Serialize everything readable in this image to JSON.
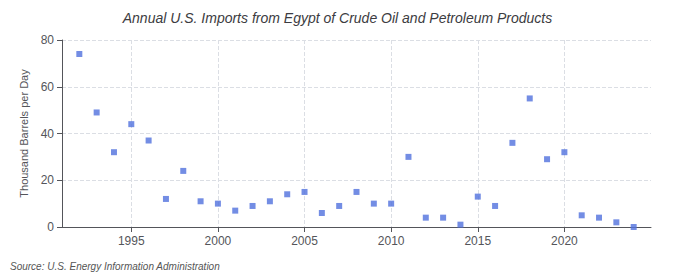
{
  "chart_data": {
    "type": "scatter",
    "title": "Annual U.S. Imports from Egypt of Crude Oil and Petroleum Products",
    "ylabel": "Thousand Barrels per Day",
    "annotations": [
      "Source: U.S. Energy Information Administration"
    ],
    "x": [
      1992,
      1993,
      1994,
      1995,
      1996,
      1997,
      1998,
      1999,
      2000,
      2001,
      2002,
      2003,
      2004,
      2005,
      2006,
      2007,
      2008,
      2009,
      2010,
      2011,
      2012,
      2013,
      2014,
      2015,
      2016,
      2017,
      2018,
      2019,
      2020,
      2021,
      2022,
      2023,
      2024
    ],
    "values": [
      74,
      49,
      32,
      44,
      37,
      12,
      24,
      11,
      10,
      7,
      9,
      11,
      14,
      15,
      6,
      9,
      15,
      10,
      10,
      30,
      4,
      4,
      1,
      13,
      9,
      36,
      55,
      29,
      32,
      5,
      4,
      2,
      0
    ],
    "xlim": [
      1991,
      2025
    ],
    "xticks": [
      1995,
      2000,
      2005,
      2010,
      2015,
      2020
    ],
    "ylim": [
      0,
      80
    ],
    "yticks": [
      0,
      20,
      40,
      60,
      80
    ],
    "marker": "square",
    "grid": true
  }
}
